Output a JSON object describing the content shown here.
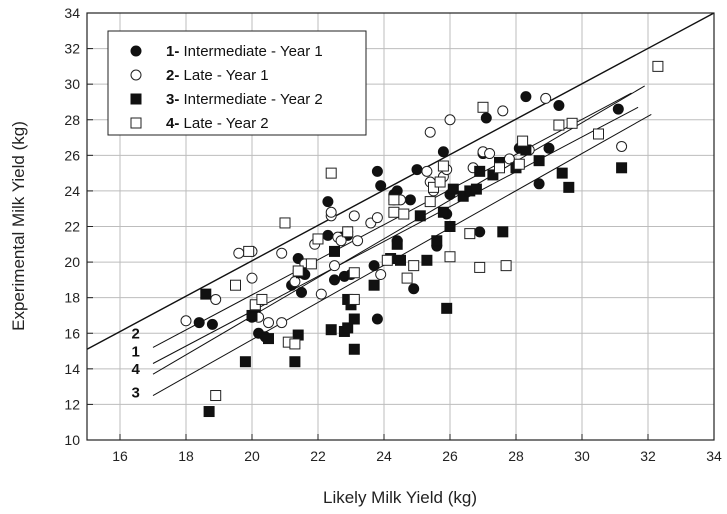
{
  "chart_data": {
    "type": "scatter",
    "title": "",
    "xlabel": "Likely Milk Yield (kg)",
    "ylabel": "Experimental Milk Yield (kg)",
    "xlim": [
      15,
      34
    ],
    "ylim": [
      10,
      34
    ],
    "xticks": [
      16,
      18,
      20,
      22,
      24,
      26,
      28,
      30,
      32,
      34
    ],
    "yticks": [
      10,
      12,
      14,
      16,
      18,
      20,
      22,
      24,
      26,
      28,
      30,
      32,
      34
    ],
    "grid": true,
    "legend_position": "top-left",
    "legend": [
      {
        "num": "1-",
        "text": "Intermediate - Year 1",
        "marker": "filled-circle"
      },
      {
        "num": "2-",
        "text": "Late - Year 1",
        "marker": "open-circle"
      },
      {
        "num": "3-",
        "text": "Intermediate - Year 2",
        "marker": "filled-square"
      },
      {
        "num": "4-",
        "text": "Late - Year 2",
        "marker": "open-square"
      }
    ],
    "identity_line": {
      "x": [
        15,
        34
      ],
      "y": [
        15.1,
        34
      ]
    },
    "fit_lines": [
      {
        "label": "2",
        "x": [
          17,
          31.5
        ],
        "y": [
          15.2,
          29.5
        ],
        "label_at": [
          16.6,
          15.7
        ]
      },
      {
        "label": "1",
        "x": [
          17,
          31.7
        ],
        "y": [
          14.3,
          28.7
        ],
        "label_at": [
          16.6,
          14.7
        ]
      },
      {
        "label": "4",
        "x": [
          17,
          31.9
        ],
        "y": [
          13.7,
          29.9
        ],
        "label_at": [
          16.6,
          13.7
        ]
      },
      {
        "label": "3",
        "x": [
          17,
          32.1
        ],
        "y": [
          12.5,
          28.3
        ],
        "label_at": [
          16.6,
          12.4
        ]
      }
    ],
    "series": [
      {
        "name": "Intermediate - Year 1",
        "marker": "filled-circle",
        "points": [
          [
            18.4,
            16.6
          ],
          [
            18.8,
            16.5
          ],
          [
            20.0,
            16.9
          ],
          [
            20.2,
            16.0
          ],
          [
            20.4,
            15.8
          ],
          [
            21.2,
            18.7
          ],
          [
            21.4,
            20.2
          ],
          [
            21.5,
            18.3
          ],
          [
            21.6,
            19.3
          ],
          [
            22.3,
            21.5
          ],
          [
            22.3,
            23.4
          ],
          [
            22.5,
            19.0
          ],
          [
            22.7,
            21.4
          ],
          [
            22.8,
            19.2
          ],
          [
            22.9,
            21.5
          ],
          [
            23.0,
            19.3
          ],
          [
            23.1,
            17.9
          ],
          [
            23.7,
            19.8
          ],
          [
            23.8,
            16.8
          ],
          [
            23.8,
            25.1
          ],
          [
            23.9,
            24.3
          ],
          [
            24.3,
            23.8
          ],
          [
            24.4,
            24.0
          ],
          [
            24.4,
            21.2
          ],
          [
            24.8,
            23.5
          ],
          [
            24.9,
            18.5
          ],
          [
            25.0,
            25.2
          ],
          [
            25.6,
            20.9
          ],
          [
            25.8,
            26.2
          ],
          [
            25.9,
            22.7
          ],
          [
            26.0,
            23.8
          ],
          [
            26.9,
            21.7
          ],
          [
            27.0,
            26.1
          ],
          [
            27.1,
            28.1
          ],
          [
            28.1,
            26.4
          ],
          [
            28.3,
            29.3
          ],
          [
            28.7,
            24.4
          ],
          [
            29.0,
            26.4
          ],
          [
            29.3,
            28.8
          ],
          [
            31.1,
            28.6
          ]
        ]
      },
      {
        "name": "Late - Year 1",
        "marker": "open-circle",
        "points": [
          [
            18.0,
            16.7
          ],
          [
            18.9,
            17.9
          ],
          [
            19.6,
            20.5
          ],
          [
            20.0,
            19.1
          ],
          [
            20.0,
            20.6
          ],
          [
            20.2,
            16.9
          ],
          [
            20.5,
            16.6
          ],
          [
            20.9,
            16.6
          ],
          [
            20.9,
            20.5
          ],
          [
            21.3,
            18.9
          ],
          [
            21.4,
            19.5
          ],
          [
            21.6,
            19.9
          ],
          [
            21.9,
            21.0
          ],
          [
            22.1,
            18.2
          ],
          [
            22.4,
            22.6
          ],
          [
            22.4,
            22.8
          ],
          [
            22.5,
            19.8
          ],
          [
            22.6,
            21.4
          ],
          [
            22.7,
            21.2
          ],
          [
            22.9,
            21.7
          ],
          [
            23.1,
            22.6
          ],
          [
            23.2,
            21.2
          ],
          [
            23.6,
            22.2
          ],
          [
            23.8,
            22.5
          ],
          [
            23.9,
            19.3
          ],
          [
            24.3,
            23.5
          ],
          [
            24.5,
            23.5
          ],
          [
            25.3,
            25.1
          ],
          [
            25.4,
            24.5
          ],
          [
            25.4,
            27.3
          ],
          [
            25.5,
            24.0
          ],
          [
            25.8,
            24.8
          ],
          [
            25.9,
            25.2
          ],
          [
            26.0,
            28.0
          ],
          [
            26.7,
            25.3
          ],
          [
            27.0,
            26.2
          ],
          [
            27.2,
            26.1
          ],
          [
            27.6,
            28.5
          ],
          [
            27.8,
            25.8
          ],
          [
            28.4,
            26.3
          ],
          [
            28.9,
            29.2
          ],
          [
            31.2,
            26.5
          ]
        ]
      },
      {
        "name": "Intermediate - Year 2",
        "marker": "filled-square",
        "points": [
          [
            18.6,
            18.2
          ],
          [
            18.7,
            11.6
          ],
          [
            19.8,
            14.4
          ],
          [
            20.0,
            17.0
          ],
          [
            20.1,
            17.5
          ],
          [
            20.5,
            15.7
          ],
          [
            21.3,
            14.4
          ],
          [
            21.4,
            15.9
          ],
          [
            21.5,
            19.4
          ],
          [
            22.4,
            16.2
          ],
          [
            22.5,
            20.6
          ],
          [
            22.8,
            16.1
          ],
          [
            22.9,
            17.9
          ],
          [
            22.9,
            16.3
          ],
          [
            23.0,
            17.6
          ],
          [
            23.1,
            16.8
          ],
          [
            23.1,
            15.1
          ],
          [
            23.7,
            18.7
          ],
          [
            24.2,
            20.2
          ],
          [
            24.4,
            21.0
          ],
          [
            24.5,
            20.1
          ],
          [
            25.1,
            22.6
          ],
          [
            25.3,
            20.1
          ],
          [
            25.6,
            21.2
          ],
          [
            25.8,
            22.8
          ],
          [
            25.9,
            17.4
          ],
          [
            26.0,
            22.0
          ],
          [
            26.1,
            24.1
          ],
          [
            26.4,
            23.7
          ],
          [
            26.6,
            24.0
          ],
          [
            26.8,
            24.1
          ],
          [
            26.9,
            25.1
          ],
          [
            27.3,
            24.9
          ],
          [
            27.5,
            25.6
          ],
          [
            27.6,
            21.7
          ],
          [
            28.0,
            25.3
          ],
          [
            28.3,
            26.3
          ],
          [
            28.7,
            25.7
          ],
          [
            29.4,
            25.0
          ],
          [
            29.6,
            24.2
          ],
          [
            31.2,
            25.3
          ]
        ]
      },
      {
        "name": "Late - Year 2",
        "marker": "open-square",
        "points": [
          [
            18.9,
            12.5
          ],
          [
            19.5,
            18.7
          ],
          [
            19.9,
            20.6
          ],
          [
            20.1,
            17.6
          ],
          [
            20.3,
            17.9
          ],
          [
            21.0,
            22.2
          ],
          [
            21.1,
            15.5
          ],
          [
            21.3,
            15.4
          ],
          [
            21.4,
            19.5
          ],
          [
            21.8,
            19.9
          ],
          [
            22.0,
            21.3
          ],
          [
            22.4,
            25.0
          ],
          [
            22.9,
            21.7
          ],
          [
            23.1,
            19.4
          ],
          [
            23.1,
            17.9
          ],
          [
            24.1,
            20.1
          ],
          [
            24.3,
            22.8
          ],
          [
            24.3,
            23.5
          ],
          [
            24.6,
            22.7
          ],
          [
            24.7,
            19.1
          ],
          [
            24.9,
            19.8
          ],
          [
            25.4,
            23.4
          ],
          [
            25.5,
            24.2
          ],
          [
            25.7,
            24.5
          ],
          [
            25.8,
            25.4
          ],
          [
            26.0,
            20.3
          ],
          [
            26.6,
            21.6
          ],
          [
            26.9,
            19.7
          ],
          [
            27.0,
            28.7
          ],
          [
            27.5,
            25.3
          ],
          [
            27.7,
            19.8
          ],
          [
            28.1,
            25.5
          ],
          [
            28.2,
            26.8
          ],
          [
            29.3,
            27.7
          ],
          [
            29.7,
            27.8
          ],
          [
            30.5,
            27.2
          ],
          [
            32.3,
            31.0
          ]
        ]
      }
    ]
  }
}
